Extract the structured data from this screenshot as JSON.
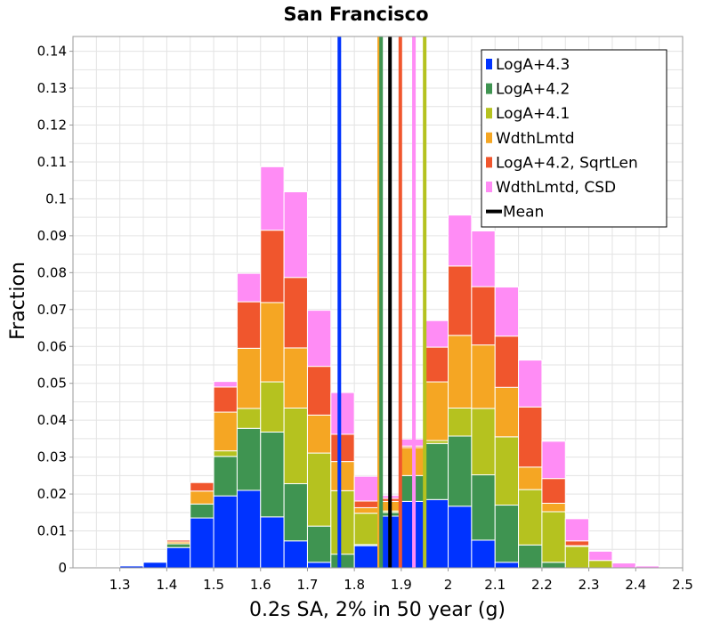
{
  "chart_data": {
    "type": "bar",
    "stacked": true,
    "title": "San Francisco",
    "xlabel": "0.2s SA, 2% in 50 year (g)",
    "ylabel": "Fraction",
    "xlim": [
      1.2,
      2.5
    ],
    "ylim": [
      0,
      0.144
    ],
    "grid": true,
    "legend_position": "top-right",
    "bin_width": 0.05,
    "bin_centers": [
      1.275,
      1.325,
      1.375,
      1.425,
      1.475,
      1.525,
      1.575,
      1.625,
      1.675,
      1.725,
      1.775,
      1.825,
      1.875,
      1.925,
      1.975,
      2.025,
      2.075,
      2.125,
      2.175,
      2.225,
      2.275,
      2.325,
      2.375,
      2.425,
      2.475
    ],
    "x_ticks": [
      "1.3",
      "1.4",
      "1.5",
      "1.6",
      "1.7",
      "1.8",
      "1.9",
      "2",
      "2.1",
      "2.2",
      "2.3",
      "2.4",
      "2.5"
    ],
    "x_tick_values": [
      1.3,
      1.4,
      1.5,
      1.6,
      1.7,
      1.8,
      1.9,
      2.0,
      2.1,
      2.2,
      2.3,
      2.4,
      2.5
    ],
    "y_ticks": [
      "0",
      "0.01",
      "0.02",
      "0.03",
      "0.04",
      "0.05",
      "0.06",
      "0.07",
      "0.08",
      "0.09",
      "0.1",
      "0.11",
      "0.12",
      "0.13",
      "0.14"
    ],
    "y_tick_values": [
      0,
      0.01,
      0.02,
      0.03,
      0.04,
      0.05,
      0.06,
      0.07,
      0.08,
      0.09,
      0.1,
      0.11,
      0.12,
      0.13,
      0.14
    ],
    "series": [
      {
        "name": "LogA+4.3",
        "color": "#0033ff",
        "values": [
          0.0002,
          0.0005,
          0.0015,
          0.0055,
          0.0135,
          0.0195,
          0.021,
          0.0138,
          0.0073,
          0.0015,
          0.0,
          0.006,
          0.014,
          0.018,
          0.0185,
          0.0167,
          0.0075,
          0.0015,
          0.0,
          0.0,
          0.0,
          0.0,
          0.0,
          0.0,
          0.0
        ]
      },
      {
        "name": "LogA+4.2",
        "color": "#3f9451",
        "values": [
          0.0,
          0.0,
          0.0,
          0.001,
          0.0038,
          0.0107,
          0.0168,
          0.023,
          0.0155,
          0.0098,
          0.0037,
          0.0003,
          0.001,
          0.007,
          0.0152,
          0.019,
          0.0177,
          0.0155,
          0.0062,
          0.0015,
          0.0,
          0.0,
          0.0,
          0.0,
          0.0
        ]
      },
      {
        "name": "LogA+4.1",
        "color": "#b5c21f",
        "values": [
          0.0,
          0.0,
          0.0,
          0.0,
          0.0,
          0.0015,
          0.0054,
          0.0136,
          0.0205,
          0.0198,
          0.0172,
          0.0085,
          0.0004,
          0.0,
          0.0008,
          0.0076,
          0.018,
          0.0185,
          0.015,
          0.0137,
          0.0058,
          0.002,
          0.0,
          0.0,
          0.0
        ]
      },
      {
        "name": "WdthLmtd",
        "color": "#f5a623",
        "values": [
          0.0,
          0.0,
          0.0,
          0.0005,
          0.0035,
          0.0105,
          0.0163,
          0.0215,
          0.0163,
          0.0103,
          0.0079,
          0.0015,
          0.0026,
          0.0076,
          0.0159,
          0.0197,
          0.0172,
          0.0134,
          0.0061,
          0.0023,
          0.0002,
          0.0,
          0.0,
          0.0,
          0.0
        ]
      },
      {
        "name": "LogA+4.2, SqrtLen",
        "color": "#f0562d",
        "values": [
          0.0,
          0.0,
          0.0,
          0.0005,
          0.0023,
          0.0068,
          0.0126,
          0.0196,
          0.0191,
          0.0132,
          0.0074,
          0.0018,
          0.0008,
          0.0004,
          0.0094,
          0.0188,
          0.0158,
          0.0139,
          0.0163,
          0.0067,
          0.0013,
          0.0,
          0.0,
          0.0,
          0.0
        ]
      },
      {
        "name": "WdthLmtd, CSD",
        "color": "#ff8cf5",
        "values": [
          0.0,
          0.0,
          0.0,
          0.0,
          0.0,
          0.0015,
          0.0077,
          0.0172,
          0.0232,
          0.0152,
          0.0113,
          0.0067,
          0.0008,
          0.0019,
          0.0072,
          0.0138,
          0.0151,
          0.0133,
          0.0127,
          0.0101,
          0.006,
          0.0025,
          0.0013,
          0.0005,
          0.0
        ]
      }
    ],
    "vertical_lines": [
      {
        "name": "LogA+4.3",
        "color": "#0033ff",
        "x": 1.768
      },
      {
        "name": "WdthLmtd",
        "color": "#f5a623",
        "x": 1.853
      },
      {
        "name": "WdthLmtd, CSD",
        "color": "#ff8cf5",
        "x": 1.927
      },
      {
        "name": "LogA+4.2",
        "color": "#3f9451",
        "x": 1.857
      },
      {
        "name": "LogA+4.2, SqrtLen",
        "color": "#f0562d",
        "x": 1.898
      },
      {
        "name": "LogA+4.1",
        "color": "#b5c21f",
        "x": 1.95
      },
      {
        "name": "Mean",
        "color": "#000000",
        "x": 1.876
      }
    ],
    "legend": [
      {
        "label": "LogA+4.3",
        "color": "#0033ff",
        "kind": "bar"
      },
      {
        "label": "LogA+4.2",
        "color": "#3f9451",
        "kind": "bar"
      },
      {
        "label": "LogA+4.1",
        "color": "#b5c21f",
        "kind": "bar"
      },
      {
        "label": "WdthLmtd",
        "color": "#f5a623",
        "kind": "bar"
      },
      {
        "label": "LogA+4.2, SqrtLen",
        "color": "#f0562d",
        "kind": "bar"
      },
      {
        "label": "WdthLmtd, CSD",
        "color": "#ff8cf5",
        "kind": "bar"
      },
      {
        "label": "Mean",
        "color": "#000000",
        "kind": "line"
      }
    ]
  }
}
